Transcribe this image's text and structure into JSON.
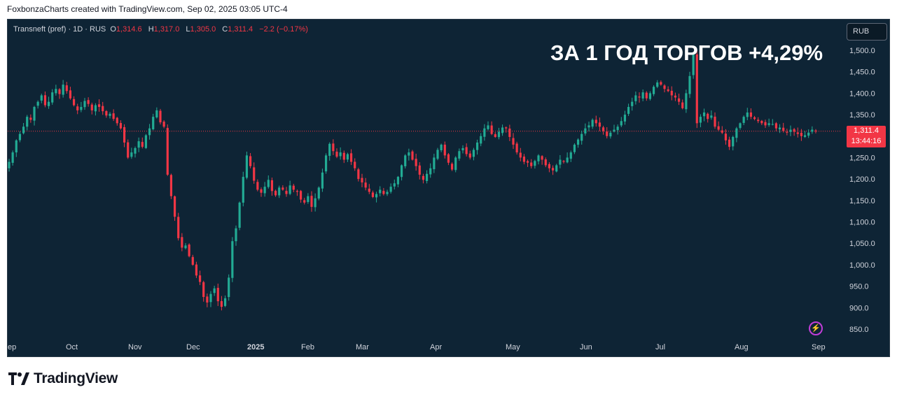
{
  "caption": "FoxbonzaCharts created with TradingView.com, Sep 02, 2025 03:05 UTC-4",
  "legend": {
    "symbol": "Transneft (pref) · 1D · RUS",
    "o_label": "O",
    "o_value": "1,314.6",
    "h_label": "H",
    "h_value": "1,317.0",
    "l_label": "L",
    "l_value": "1,305.0",
    "c_label": "C",
    "c_value": "1,311.4",
    "change": "−2.2 (−0.17%)"
  },
  "currency": "RUB",
  "headline": "ЗА 1 ГОД ТОРГОВ +4,29%",
  "price_tag": {
    "price": "1,311.4",
    "countdown": "13:44:16"
  },
  "brand": "TradingView",
  "icons": {
    "logo": "tradingview-logo-icon",
    "bolt": "lightning-icon"
  },
  "colors": {
    "up": "#22ab94",
    "down": "#f23645",
    "background": "#0e2435",
    "text": "#d1d4dc"
  },
  "chart_data": {
    "type": "candlestick",
    "ylim": [
      820,
      1530
    ],
    "y_ticks": [
      "1,500.0",
      "1,450.0",
      "1,400.0",
      "1,350.0",
      "1,300.0",
      "1,250.0",
      "1,200.0",
      "1,150.0",
      "1,100.0",
      "1,050.0",
      "1,000.0",
      "950.0",
      "900.0",
      "850.0"
    ],
    "x_labels": [
      "ep",
      "Oct",
      "Nov",
      "Dec",
      "2025",
      "Feb",
      "Mar",
      "Apr",
      "May",
      "Jun",
      "Jul",
      "Aug",
      "Sep"
    ],
    "x_label_positions": [
      0,
      0.1,
      0.2,
      0.3,
      0.4,
      0.5,
      0.6,
      0.7,
      0.8,
      0.9,
      1.0,
      1.1,
      1.2
    ],
    "last_close": 1311.4,
    "closes": [
      1240,
      1262,
      1290,
      1305,
      1322,
      1345,
      1338,
      1368,
      1380,
      1395,
      1372,
      1380,
      1402,
      1410,
      1398,
      1420,
      1405,
      1388,
      1372,
      1360,
      1368,
      1382,
      1375,
      1360,
      1372,
      1368,
      1358,
      1348,
      1352,
      1340,
      1330,
      1318,
      1285,
      1250,
      1262,
      1272,
      1288,
      1275,
      1302,
      1318,
      1345,
      1360,
      1332,
      1322,
      1210,
      1160,
      1112,
      1062,
      1040,
      1045,
      1020,
      1000,
      975,
      960,
      925,
      912,
      932,
      945,
      915,
      902,
      922,
      970,
      1055,
      1085,
      1145,
      1205,
      1255,
      1230,
      1196,
      1175,
      1168,
      1182,
      1198,
      1172,
      1162,
      1180,
      1175,
      1165,
      1185,
      1175,
      1170,
      1152,
      1145,
      1160,
      1135,
      1155,
      1180,
      1215,
      1255,
      1282,
      1265,
      1252,
      1262,
      1245,
      1258,
      1240,
      1225,
      1200,
      1192,
      1180,
      1170,
      1158,
      1165,
      1175,
      1165,
      1170,
      1182,
      1190,
      1205,
      1232,
      1255,
      1262,
      1245,
      1230,
      1210,
      1198,
      1212,
      1225,
      1250,
      1268,
      1280,
      1255,
      1238,
      1222,
      1250,
      1265,
      1272,
      1258,
      1250,
      1268,
      1285,
      1300,
      1318,
      1325,
      1305,
      1298,
      1310,
      1320,
      1318,
      1298,
      1280,
      1262,
      1250,
      1240,
      1238,
      1230,
      1242,
      1255,
      1245,
      1232,
      1225,
      1220,
      1232,
      1245,
      1240,
      1250,
      1262,
      1280,
      1292,
      1305,
      1318,
      1325,
      1338,
      1330,
      1322,
      1312,
      1300,
      1308,
      1315,
      1322,
      1335,
      1350,
      1368,
      1380,
      1395,
      1390,
      1402,
      1388,
      1400,
      1415,
      1425,
      1420,
      1410,
      1405,
      1395,
      1390,
      1380,
      1365,
      1400,
      1440,
      1490,
      1330,
      1345,
      1355,
      1340,
      1348,
      1322,
      1315,
      1308,
      1290,
      1275,
      1298,
      1318,
      1330,
      1345,
      1355,
      1345,
      1340,
      1335,
      1330,
      1325,
      1330,
      1328,
      1318,
      1320,
      1312,
      1308,
      1315,
      1310,
      1305,
      1300,
      1302,
      1308,
      1315,
      1311.4
    ]
  }
}
